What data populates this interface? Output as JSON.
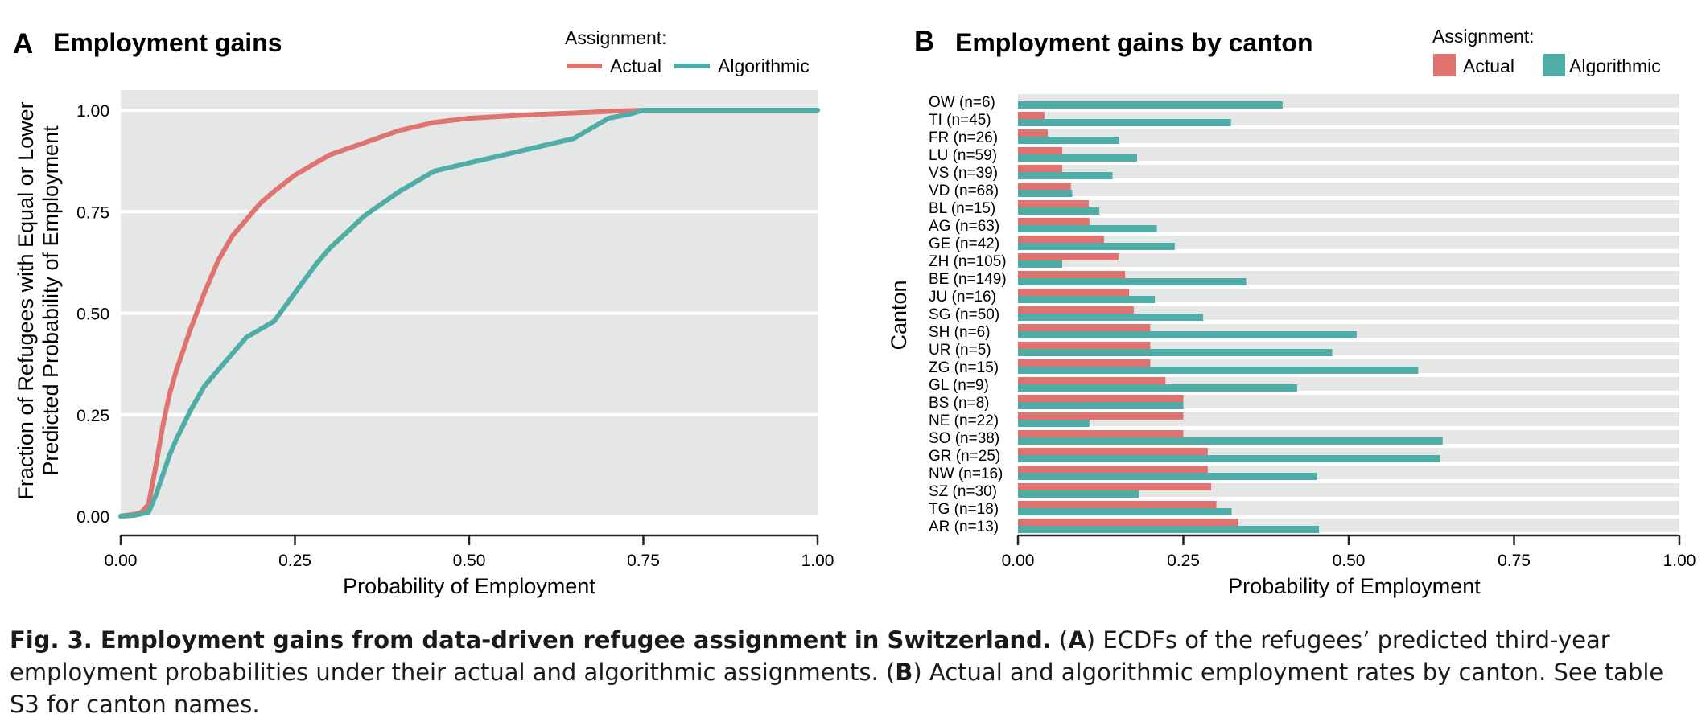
{
  "panel_a": {
    "letter": "A",
    "title": "Employment gains",
    "legend_title": "Assignment:",
    "legend_actual": "Actual",
    "legend_algorithmic": "Algorithmic",
    "ylabel_line1": "Fraction of Refugees with Equal or Lower",
    "ylabel_line2": "Predicted Probability of Employment",
    "xlabel": "Probability of Employment"
  },
  "panel_b": {
    "letter": "B",
    "title": "Employment gains by canton",
    "legend_title": "Assignment:",
    "legend_actual": "Actual",
    "legend_algorithmic": "Algorithmic",
    "ylabel": "Canton",
    "xlabel": "Probability of Employment"
  },
  "caption": {
    "fig_label": "Fig. 3. Employment gains from data-driven refugee assignment in Switzerland.",
    "part_a_open": " (",
    "part_a_letter": "A",
    "part_a_text": ") ECDFs of the refugees’ predicted third-year employment probabilities under their actual and algorithmic assignments. (",
    "part_b_letter": "B",
    "part_b_text": ") Actual and algorithmic employment rates by canton. See table S3 for canton names."
  },
  "colors": {
    "actual": "#e07370",
    "algorithmic": "#4fada8",
    "panel_bg": "#e5e6e6",
    "grid": "#ffffff"
  },
  "chart_data": [
    {
      "type": "line",
      "title": "Employment gains",
      "xlabel": "Probability of Employment",
      "ylabel": "Fraction of Refugees with Equal or Lower Predicted Probability of Employment",
      "xlim": [
        0,
        1
      ],
      "ylim": [
        0,
        1
      ],
      "x_ticks": [
        "0.00",
        "0.25",
        "0.50",
        "0.75",
        "1.00"
      ],
      "y_ticks": [
        "0.00",
        "0.25",
        "0.50",
        "0.75",
        "1.00"
      ],
      "grid": true,
      "legend": "top",
      "series": [
        {
          "name": "Actual",
          "x": [
            0,
            0.02,
            0.03,
            0.04,
            0.05,
            0.06,
            0.07,
            0.08,
            0.1,
            0.12,
            0.14,
            0.16,
            0.18,
            0.2,
            0.22,
            0.25,
            0.28,
            0.3,
            0.35,
            0.4,
            0.45,
            0.5,
            0.55,
            0.6,
            0.65,
            0.7,
            0.75,
            1.0
          ],
          "y": [
            0,
            0.005,
            0.01,
            0.03,
            0.12,
            0.22,
            0.3,
            0.36,
            0.46,
            0.55,
            0.63,
            0.69,
            0.73,
            0.77,
            0.8,
            0.84,
            0.87,
            0.89,
            0.92,
            0.95,
            0.97,
            0.98,
            0.985,
            0.99,
            0.993,
            0.997,
            1.0,
            1.0
          ]
        },
        {
          "name": "Algorithmic",
          "x": [
            0,
            0.02,
            0.04,
            0.05,
            0.06,
            0.07,
            0.08,
            0.1,
            0.12,
            0.15,
            0.18,
            0.2,
            0.22,
            0.25,
            0.28,
            0.3,
            0.35,
            0.4,
            0.45,
            0.5,
            0.55,
            0.6,
            0.65,
            0.68,
            0.7,
            0.73,
            0.75,
            1.0
          ],
          "y": [
            0,
            0.002,
            0.01,
            0.05,
            0.1,
            0.15,
            0.19,
            0.26,
            0.32,
            0.38,
            0.44,
            0.46,
            0.48,
            0.55,
            0.62,
            0.66,
            0.74,
            0.8,
            0.85,
            0.87,
            0.89,
            0.91,
            0.93,
            0.96,
            0.98,
            0.99,
            1.0,
            1.0
          ]
        }
      ]
    },
    {
      "type": "bar",
      "orientation": "horizontal",
      "title": "Employment gains by canton",
      "xlabel": "Probability of Employment",
      "ylabel": "Canton",
      "xlim": [
        0,
        1
      ],
      "x_ticks": [
        "0.00",
        "0.25",
        "0.50",
        "0.75",
        "1.00"
      ],
      "legend": "top-right",
      "categories": [
        "OW (n=6)",
        "TI (n=45)",
        "FR (n=26)",
        "LU (n=59)",
        "VS (n=39)",
        "VD (n=68)",
        "BL (n=15)",
        "AG (n=63)",
        "GE (n=42)",
        "ZH (n=105)",
        "BE (n=149)",
        "JU (n=16)",
        "SG (n=50)",
        "SH (n=6)",
        "UR (n=5)",
        "ZG (n=15)",
        "GL (n=9)",
        "BS (n=8)",
        "NE (n=22)",
        "SO (n=38)",
        "GR (n=25)",
        "NW (n=16)",
        "SZ (n=30)",
        "TG (n=18)",
        "AR (n=13)"
      ],
      "series": [
        {
          "name": "Actual",
          "values": [
            0.0,
            0.04,
            0.045,
            0.067,
            0.067,
            0.08,
            0.107,
            0.108,
            0.13,
            0.152,
            0.162,
            0.168,
            0.175,
            0.2,
            0.2,
            0.2,
            0.223,
            0.25,
            0.25,
            0.25,
            0.287,
            0.287,
            0.292,
            0.3,
            0.333
          ]
        },
        {
          "name": "Algorithmic",
          "values": [
            0.4,
            0.322,
            0.153,
            0.18,
            0.143,
            0.082,
            0.123,
            0.21,
            0.237,
            0.067,
            0.345,
            0.207,
            0.28,
            0.512,
            0.475,
            0.605,
            0.422,
            0.25,
            0.108,
            0.642,
            0.638,
            0.452,
            0.183,
            0.323,
            0.455
          ]
        }
      ]
    }
  ]
}
